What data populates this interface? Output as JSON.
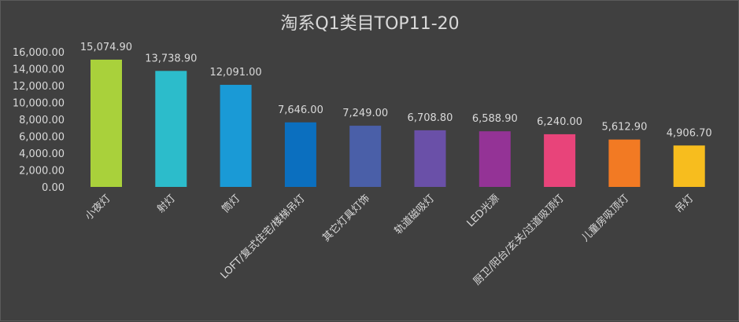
{
  "chart_data": {
    "type": "bar",
    "title": "淘系Q1类目TOP11-20",
    "categories": [
      "小夜灯",
      "射灯",
      "筒灯",
      "LOFT/复式住宅/楼梯吊灯",
      "其它灯具灯饰",
      "轨道磁吸灯",
      "LED光源",
      "厨卫/阳台/玄关/过道吸顶灯",
      "儿童房吸顶灯",
      "吊灯"
    ],
    "values": [
      15074.9,
      13738.9,
      12091.0,
      7646.0,
      7249.0,
      6708.8,
      6588.9,
      6240.0,
      5612.9,
      4906.7
    ],
    "value_labels": [
      "15,074.90",
      "13,738.90",
      "12,091.00",
      "7,646.00",
      "7,249.00",
      "6,708.80",
      "6,588.90",
      "6,240.00",
      "5,612.90",
      "4,906.70"
    ],
    "colors": [
      "#a9d13b",
      "#2cbccb",
      "#1a9ad6",
      "#0b6fbf",
      "#4a5fa8",
      "#6a50a8",
      "#943396",
      "#e8447a",
      "#f27a23",
      "#f7bd1e"
    ],
    "y_ticks": [
      "0.00",
      "2,000.00",
      "4,000.00",
      "6,000.00",
      "8,000.00",
      "10,000.00",
      "12,000.00",
      "14,000.00",
      "16,000.00"
    ],
    "ylim": [
      0,
      16000
    ],
    "grid": false,
    "xlabel": "",
    "ylabel": ""
  }
}
